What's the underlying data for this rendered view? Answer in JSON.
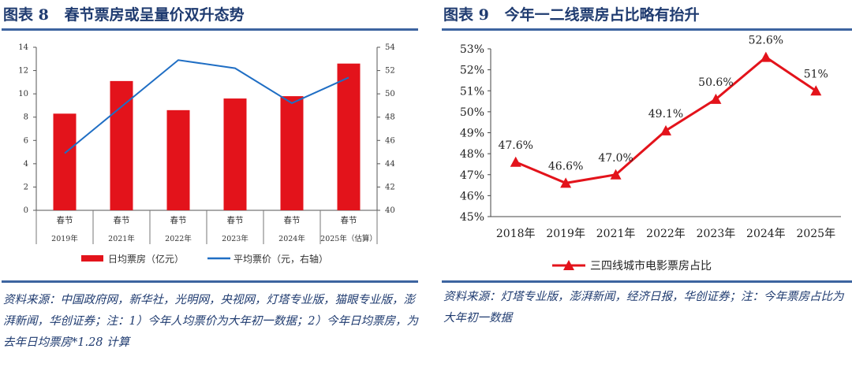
{
  "left": {
    "title": "图表 8   春节票房或呈量价双升态势",
    "source": "资料来源：中国政府网，新华社，光明网，央视网，灯塔专业版，猫眼专业版，澎湃新闻，华创证券；注：1）今年人均票价为大年初一数据；2）今年日均票房，为去年日均票房*1.28 计算"
  },
  "right": {
    "title": "图表 9   今年一二线票房占比略有抬升",
    "source": "资料来源：灯塔专业版，澎湃新闻，经济日报，华创证券；注：今年票房占比为大年初一数据"
  },
  "chart_data": [
    {
      "type": "bar+line",
      "categories_top": [
        "春节",
        "春节",
        "春节",
        "春节",
        "春节",
        "春节"
      ],
      "categories": [
        "2019年",
        "2021年",
        "2022年",
        "2023年",
        "2024年",
        "2025年（估算）"
      ],
      "series": [
        {
          "name": "日均票房（亿元）",
          "type": "bar",
          "axis": "left",
          "color": "#e3131b",
          "values": [
            8.3,
            11.1,
            8.6,
            9.6,
            9.8,
            12.6
          ]
        },
        {
          "name": "平均票价（元，右轴）",
          "type": "line",
          "axis": "right",
          "color": "#1f6ec4",
          "values": [
            44.9,
            48.9,
            52.9,
            52.2,
            49.2,
            51.4
          ]
        }
      ],
      "ylim": [
        0,
        14
      ],
      "yticks": [
        0,
        2,
        4,
        6,
        8,
        10,
        12,
        14
      ],
      "y2lim": [
        40,
        54
      ],
      "y2ticks": [
        40,
        42,
        44,
        46,
        48,
        50,
        52,
        54
      ],
      "legend": "bottom",
      "grid": false
    },
    {
      "type": "line",
      "categories": [
        "2018年",
        "2019年",
        "2021年",
        "2022年",
        "2023年",
        "2024年",
        "2025年"
      ],
      "series": [
        {
          "name": "三四线城市电影票房占比",
          "color": "#e3131b",
          "marker": "triangle",
          "values": [
            47.6,
            46.6,
            47.0,
            49.1,
            50.6,
            52.6,
            51.0
          ],
          "labels": [
            "47.6%",
            "46.6%",
            "47.0%",
            "49.1%",
            "50.6%",
            "52.6%",
            "51%"
          ]
        }
      ],
      "ylim": [
        45,
        53
      ],
      "yticks": [
        "45%",
        "46%",
        "47%",
        "48%",
        "49%",
        "50%",
        "51%",
        "52%",
        "53%"
      ],
      "legend": "bottom",
      "grid": false
    }
  ]
}
